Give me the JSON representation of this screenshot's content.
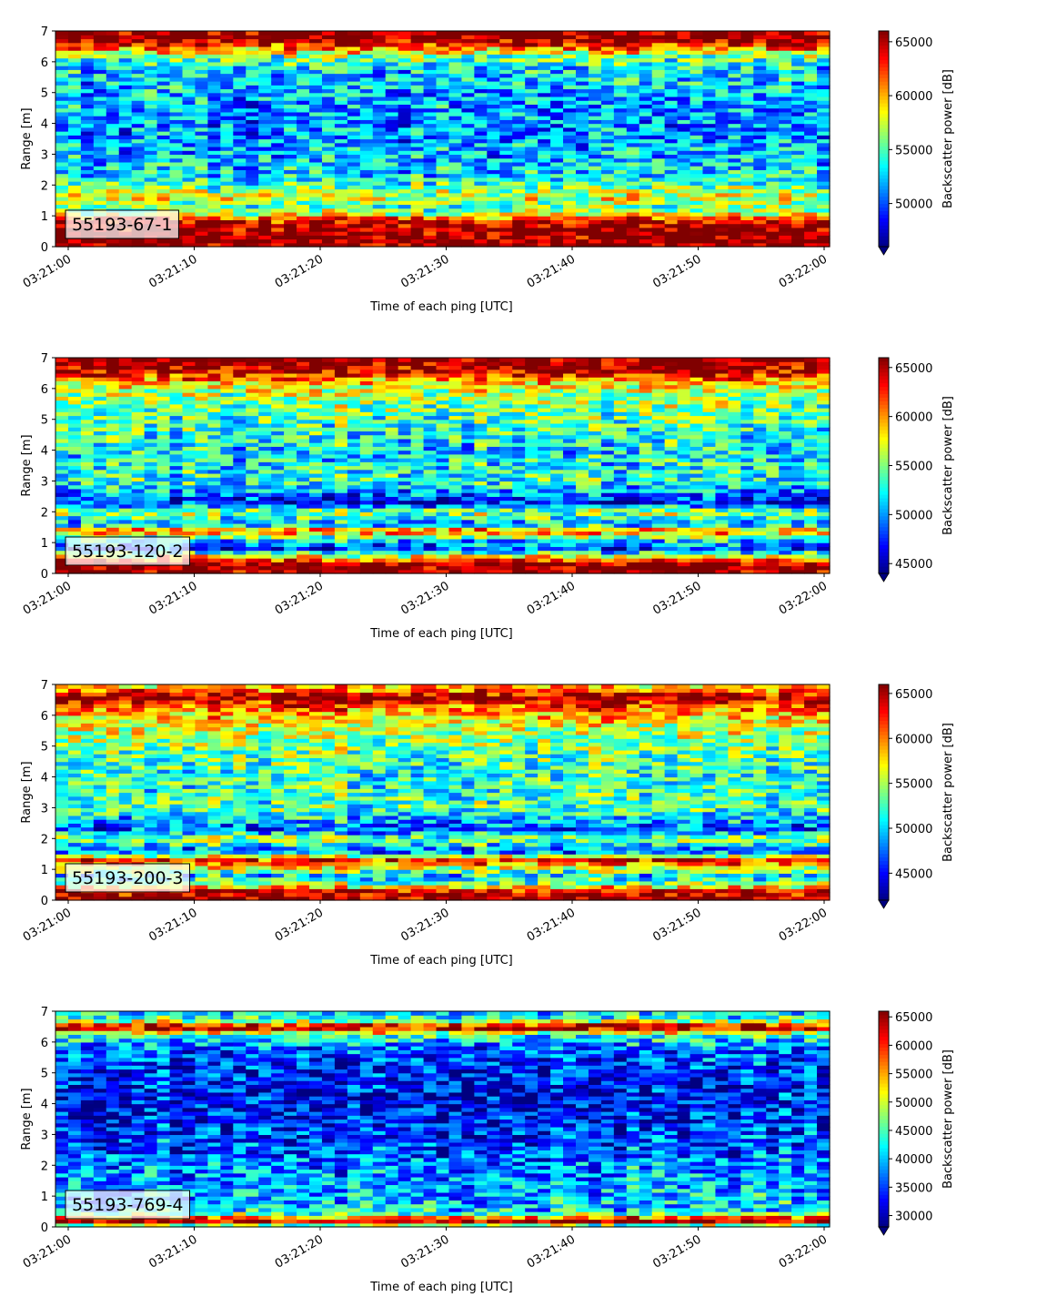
{
  "chart_data": [
    {
      "type": "heatmap",
      "label": "55193-67-1",
      "xlabel": "Time of each ping [UTC]",
      "ylabel": "Range [m]",
      "xticks": [
        "03:21:00",
        "03:21:10",
        "03:21:20",
        "03:21:30",
        "03:21:40",
        "03:21:50",
        "03:22:00"
      ],
      "ylim": [
        0,
        7
      ],
      "yticks": [
        0,
        1,
        2,
        3,
        4,
        5,
        6,
        7
      ],
      "colorbar": {
        "label": "Backscatter power [dB]",
        "min": 46000,
        "max": 66000,
        "ticks": [
          50000,
          55000,
          60000,
          65000
        ]
      },
      "profile": [
        {
          "r": 0.0,
          "v": 66000
        },
        {
          "r": 0.25,
          "v": 66000
        },
        {
          "r": 0.55,
          "v": 66000
        },
        {
          "r": 0.85,
          "v": 64000
        },
        {
          "r": 1.1,
          "v": 57000
        },
        {
          "r": 1.3,
          "v": 55000
        },
        {
          "r": 1.6,
          "v": 58000
        },
        {
          "r": 1.9,
          "v": 56000
        },
        {
          "r": 2.3,
          "v": 53000
        },
        {
          "r": 3.0,
          "v": 52000
        },
        {
          "r": 4.0,
          "v": 51000
        },
        {
          "r": 5.0,
          "v": 52000
        },
        {
          "r": 5.8,
          "v": 53000
        },
        {
          "r": 6.2,
          "v": 56000
        },
        {
          "r": 6.5,
          "v": 62000
        },
        {
          "r": 6.75,
          "v": 66000
        },
        {
          "r": 7.0,
          "v": 66000
        }
      ]
    },
    {
      "type": "heatmap",
      "label": "55193-120-2",
      "xlabel": "Time of each ping [UTC]",
      "ylabel": "Range [m]",
      "xticks": [
        "03:21:00",
        "03:21:10",
        "03:21:20",
        "03:21:30",
        "03:21:40",
        "03:21:50",
        "03:22:00"
      ],
      "ylim": [
        0,
        7
      ],
      "yticks": [
        0,
        1,
        2,
        3,
        4,
        5,
        6,
        7
      ],
      "colorbar": {
        "label": "Backscatter power [dB]",
        "min": 44000,
        "max": 66000,
        "ticks": [
          45000,
          50000,
          55000,
          60000,
          65000
        ]
      },
      "profile": [
        {
          "r": 0.0,
          "v": 66000
        },
        {
          "r": 0.3,
          "v": 66000
        },
        {
          "r": 0.5,
          "v": 60000
        },
        {
          "r": 0.8,
          "v": 48000
        },
        {
          "r": 1.1,
          "v": 52000
        },
        {
          "r": 1.4,
          "v": 62000
        },
        {
          "r": 1.6,
          "v": 50000
        },
        {
          "r": 2.0,
          "v": 56000
        },
        {
          "r": 2.3,
          "v": 47000
        },
        {
          "r": 3.0,
          "v": 53000
        },
        {
          "r": 4.0,
          "v": 52000
        },
        {
          "r": 5.0,
          "v": 54000
        },
        {
          "r": 5.8,
          "v": 56000
        },
        {
          "r": 6.2,
          "v": 59000
        },
        {
          "r": 6.5,
          "v": 64000
        },
        {
          "r": 6.8,
          "v": 66000
        },
        {
          "r": 7.0,
          "v": 66000
        }
      ]
    },
    {
      "type": "heatmap",
      "label": "55193-200-3",
      "xlabel": "Time of each ping [UTC]",
      "ylabel": "Range [m]",
      "xticks": [
        "03:21:00",
        "03:21:10",
        "03:21:20",
        "03:21:30",
        "03:21:40",
        "03:21:50",
        "03:22:00"
      ],
      "ylim": [
        0,
        7
      ],
      "yticks": [
        0,
        1,
        2,
        3,
        4,
        5,
        6,
        7
      ],
      "colorbar": {
        "label": "Backscatter power [dB]",
        "min": 42000,
        "max": 66000,
        "ticks": [
          45000,
          50000,
          55000,
          60000,
          65000
        ]
      },
      "profile": [
        {
          "r": 0.0,
          "v": 66000
        },
        {
          "r": 0.3,
          "v": 64000
        },
        {
          "r": 0.5,
          "v": 55000
        },
        {
          "r": 0.8,
          "v": 50000
        },
        {
          "r": 1.3,
          "v": 63000
        },
        {
          "r": 1.6,
          "v": 47000
        },
        {
          "r": 2.0,
          "v": 55000
        },
        {
          "r": 2.3,
          "v": 47000
        },
        {
          "r": 3.0,
          "v": 53000
        },
        {
          "r": 4.0,
          "v": 52000
        },
        {
          "r": 5.0,
          "v": 54000
        },
        {
          "r": 5.8,
          "v": 57000
        },
        {
          "r": 6.2,
          "v": 60000
        },
        {
          "r": 6.6,
          "v": 66000
        },
        {
          "r": 6.85,
          "v": 60000
        },
        {
          "r": 7.0,
          "v": 58000
        }
      ]
    },
    {
      "type": "heatmap",
      "label": "55193-769-4",
      "xlabel": "Time of each ping [UTC]",
      "ylabel": "Range [m]",
      "xticks": [
        "03:21:00",
        "03:21:10",
        "03:21:20",
        "03:21:30",
        "03:21:40",
        "03:21:50",
        "03:22:00"
      ],
      "ylim": [
        0,
        7
      ],
      "yticks": [
        0,
        1,
        2,
        3,
        4,
        5,
        6,
        7
      ],
      "colorbar": {
        "label": "Backscatter power [dB]",
        "min": 28000,
        "max": 66000,
        "ticks": [
          30000,
          35000,
          40000,
          45000,
          50000,
          55000,
          60000,
          65000
        ]
      },
      "profile": [
        {
          "r": 0.0,
          "v": 40000
        },
        {
          "r": 0.2,
          "v": 66000
        },
        {
          "r": 0.3,
          "v": 58000
        },
        {
          "r": 0.5,
          "v": 42000
        },
        {
          "r": 1.0,
          "v": 40000
        },
        {
          "r": 2.0,
          "v": 38000
        },
        {
          "r": 3.0,
          "v": 35000
        },
        {
          "r": 4.0,
          "v": 33000
        },
        {
          "r": 5.0,
          "v": 34000
        },
        {
          "r": 5.8,
          "v": 37000
        },
        {
          "r": 6.2,
          "v": 44000
        },
        {
          "r": 6.5,
          "v": 66000
        },
        {
          "r": 6.75,
          "v": 44000
        },
        {
          "r": 7.0,
          "v": 42000
        }
      ]
    }
  ]
}
